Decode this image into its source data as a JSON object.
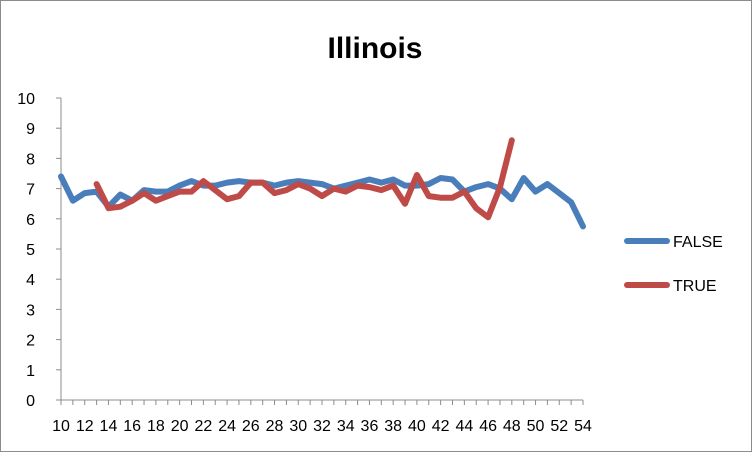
{
  "chart_data": {
    "type": "line",
    "title": "Illinois",
    "xlabel": "",
    "ylabel": "",
    "ylim": [
      0,
      10
    ],
    "yticks": [
      0,
      1,
      2,
      3,
      4,
      5,
      6,
      7,
      8,
      9,
      10
    ],
    "xlim": [
      10,
      54
    ],
    "xticks": [
      10,
      12,
      14,
      16,
      18,
      20,
      22,
      24,
      26,
      28,
      30,
      32,
      34,
      36,
      38,
      40,
      42,
      44,
      46,
      48,
      50,
      52,
      54
    ],
    "grid": false,
    "legend": "right",
    "series": [
      {
        "name": "FALSE",
        "color": "#4a7ebb",
        "x": [
          10,
          11,
          12,
          13,
          14,
          15,
          16,
          17,
          18,
          19,
          20,
          21,
          22,
          23,
          24,
          25,
          26,
          27,
          28,
          29,
          30,
          31,
          32,
          33,
          34,
          35,
          36,
          37,
          38,
          39,
          40,
          41,
          42,
          43,
          44,
          45,
          46,
          47,
          48,
          49,
          50,
          51,
          52,
          53,
          54
        ],
        "values": [
          7.4,
          6.6,
          6.85,
          6.9,
          6.4,
          6.8,
          6.6,
          6.95,
          6.9,
          6.9,
          7.1,
          7.25,
          7.1,
          7.1,
          7.2,
          7.25,
          7.2,
          7.2,
          7.1,
          7.2,
          7.25,
          7.2,
          7.15,
          7.0,
          7.1,
          7.2,
          7.3,
          7.2,
          7.3,
          7.1,
          7.1,
          7.15,
          7.35,
          7.3,
          6.9,
          7.05,
          7.15,
          7.0,
          6.65,
          7.35,
          6.9,
          7.15,
          6.85,
          6.55,
          5.75
        ]
      },
      {
        "name": "TRUE",
        "color": "#be4b48",
        "x": [
          13,
          14,
          15,
          16,
          17,
          18,
          19,
          20,
          21,
          22,
          23,
          24,
          25,
          26,
          27,
          28,
          29,
          30,
          31,
          32,
          33,
          34,
          35,
          36,
          37,
          38,
          39,
          40,
          41,
          42,
          43,
          44,
          45,
          46,
          47,
          48
        ],
        "values": [
          7.15,
          6.35,
          6.4,
          6.6,
          6.85,
          6.6,
          6.75,
          6.9,
          6.9,
          7.25,
          6.95,
          6.65,
          6.75,
          7.2,
          7.2,
          6.85,
          6.95,
          7.15,
          7.0,
          6.75,
          7.0,
          6.9,
          7.1,
          7.05,
          6.95,
          7.1,
          6.5,
          7.45,
          6.75,
          6.7,
          6.7,
          6.9,
          6.35,
          6.05,
          7.05,
          8.6
        ]
      }
    ]
  }
}
